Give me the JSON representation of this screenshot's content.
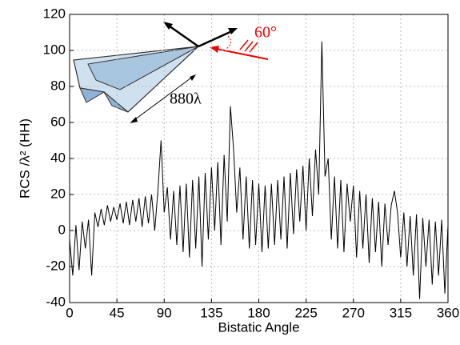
{
  "chart_data": {
    "type": "line",
    "xlabel": "Bistatic Angle",
    "ylabel": "RCS /λ² (HH)",
    "annotations": [
      "880λ",
      "60°"
    ],
    "x": [
      0,
      3,
      6,
      9,
      12,
      15,
      18,
      21,
      24,
      27,
      30,
      33,
      36,
      39,
      42,
      45,
      48,
      51,
      54,
      57,
      60,
      63,
      66,
      69,
      72,
      75,
      78,
      81,
      84,
      87,
      90,
      93,
      96,
      99,
      102,
      105,
      108,
      111,
      114,
      117,
      120,
      123,
      126,
      129,
      132,
      135,
      138,
      141,
      144,
      147,
      150,
      153,
      156,
      159,
      162,
      165,
      168,
      171,
      174,
      177,
      180,
      183,
      186,
      189,
      192,
      195,
      198,
      201,
      204,
      207,
      210,
      213,
      216,
      219,
      222,
      225,
      228,
      231,
      234,
      237,
      240,
      243,
      246,
      249,
      252,
      255,
      258,
      261,
      264,
      267,
      270,
      273,
      276,
      279,
      282,
      285,
      288,
      291,
      294,
      297,
      300,
      303,
      306,
      309,
      312,
      315,
      318,
      321,
      324,
      327,
      330,
      333,
      336,
      339,
      342,
      345,
      348,
      351,
      354,
      357,
      360
    ],
    "series": [
      {
        "color": "#000000",
        "values": [
          -5,
          -25,
          3,
          -22,
          5,
          -10,
          6,
          -25,
          10,
          2,
          12,
          3,
          14,
          5,
          13,
          6,
          15,
          4,
          16,
          3,
          17,
          5,
          18,
          2,
          19,
          4,
          20,
          0,
          22,
          50,
          10,
          24,
          -5,
          22,
          -8,
          25,
          -12,
          26,
          -15,
          28,
          -10,
          30,
          -20,
          32,
          -5,
          35,
          0,
          38,
          -8,
          42,
          5,
          69,
          45,
          10,
          35,
          -5,
          30,
          -10,
          28,
          -8,
          26,
          -12,
          25,
          -10,
          26,
          -8,
          28,
          -5,
          30,
          -10,
          32,
          -2,
          34,
          5,
          36,
          0,
          40,
          8,
          45,
          20,
          105,
          30,
          40,
          -5,
          30,
          -10,
          28,
          -12,
          26,
          5,
          25,
          -15,
          22,
          -10,
          20,
          -18,
          18,
          -12,
          16,
          -20,
          15,
          -8,
          14,
          22,
          10,
          -15,
          10,
          -20,
          8,
          -25,
          9,
          -38,
          7,
          -20,
          6,
          -30,
          5,
          -25,
          6,
          -35,
          3
        ]
      }
    ],
    "xlim": [
      0,
      360
    ],
    "ylim": [
      -40,
      120
    ],
    "xticks": [
      0,
      45,
      90,
      135,
      180,
      225,
      270,
      315,
      360
    ],
    "yticks": [
      -40,
      -20,
      0,
      20,
      40,
      60,
      80,
      100,
      120
    ],
    "grid": true
  }
}
